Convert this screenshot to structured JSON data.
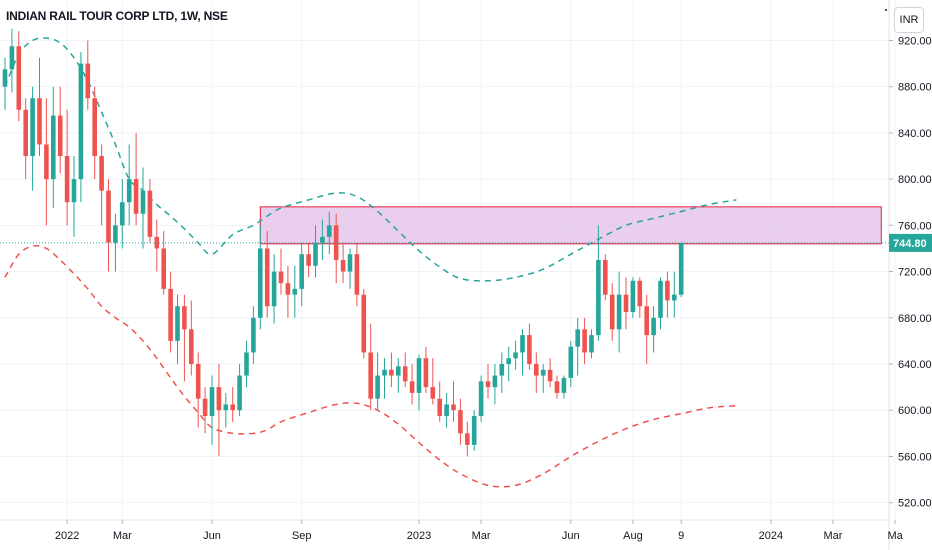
{
  "header": {
    "symbol_title": "INDIAN RAIL TOUR CORP LTD, 1W, NSE",
    "currency_label": "INR"
  },
  "colors": {
    "up": "#26a69a",
    "down": "#ef5350",
    "zone_fill": "#e1bee7",
    "zone_border": "#e91e3a",
    "upper_band": "#26a69a",
    "lower_band": "#ef5350",
    "last_price_badge": "#26a69a"
  },
  "chart_data": {
    "type": "candlestick",
    "x_axis": {
      "ticks": [
        {
          "label": "2022",
          "t": 9
        },
        {
          "label": "Mar",
          "t": 17
        },
        {
          "label": "Jun",
          "t": 30
        },
        {
          "label": "Sep",
          "t": 43
        },
        {
          "label": "2023",
          "t": 60
        },
        {
          "label": "Mar",
          "t": 69
        },
        {
          "label": "Jun",
          "t": 82
        },
        {
          "label": "Aug",
          "t": 91
        },
        {
          "label": "9",
          "t": 98
        },
        {
          "label": "2024",
          "t": 111
        },
        {
          "label": "Mar",
          "t": 120
        },
        {
          "label": "Ma",
          "t": 129
        }
      ]
    },
    "y_axis": {
      "ticks": [
        520,
        560,
        600,
        640,
        680,
        720,
        760,
        800,
        840,
        880,
        920
      ],
      "range": [
        505,
        955
      ]
    },
    "last_price": 744.8,
    "last_price_label": "744.80",
    "resistance_zone": {
      "t_start": 37,
      "t_end": 127,
      "low": 744,
      "high": 776
    },
    "upper_band": [
      [
        0,
        880
      ],
      [
        2,
        908
      ],
      [
        4,
        920
      ],
      [
        6,
        922
      ],
      [
        8,
        918
      ],
      [
        10,
        905
      ],
      [
        12,
        885
      ],
      [
        14,
        858
      ],
      [
        16,
        830
      ],
      [
        18,
        800
      ],
      [
        20,
        790
      ],
      [
        22,
        778
      ],
      [
        24,
        768
      ],
      [
        26,
        757
      ],
      [
        28,
        745
      ],
      [
        30,
        735
      ],
      [
        33,
        752
      ],
      [
        36,
        760
      ],
      [
        38,
        768
      ],
      [
        40,
        775
      ],
      [
        44,
        782
      ],
      [
        48,
        788
      ],
      [
        51,
        785
      ],
      [
        54,
        772
      ],
      [
        57,
        755
      ],
      [
        60,
        738
      ],
      [
        63,
        724
      ],
      [
        66,
        714
      ],
      [
        70,
        712
      ],
      [
        74,
        715
      ],
      [
        78,
        722
      ],
      [
        82,
        735
      ],
      [
        86,
        748
      ],
      [
        90,
        760
      ],
      [
        94,
        766
      ],
      [
        98,
        772
      ],
      [
        102,
        778
      ],
      [
        106,
        782
      ]
    ],
    "lower_band": [
      [
        0,
        715
      ],
      [
        2,
        735
      ],
      [
        4,
        742
      ],
      [
        6,
        740
      ],
      [
        8,
        730
      ],
      [
        10,
        718
      ],
      [
        12,
        705
      ],
      [
        14,
        690
      ],
      [
        16,
        680
      ],
      [
        18,
        672
      ],
      [
        20,
        660
      ],
      [
        22,
        645
      ],
      [
        24,
        628
      ],
      [
        26,
        612
      ],
      [
        28,
        598
      ],
      [
        30,
        585
      ],
      [
        33,
        580
      ],
      [
        36,
        580
      ],
      [
        38,
        583
      ],
      [
        40,
        590
      ],
      [
        44,
        598
      ],
      [
        48,
        605
      ],
      [
        51,
        606
      ],
      [
        54,
        600
      ],
      [
        57,
        588
      ],
      [
        60,
        572
      ],
      [
        63,
        557
      ],
      [
        66,
        545
      ],
      [
        70,
        535
      ],
      [
        74,
        535
      ],
      [
        78,
        545
      ],
      [
        82,
        560
      ],
      [
        86,
        573
      ],
      [
        90,
        584
      ],
      [
        94,
        592
      ],
      [
        98,
        597
      ],
      [
        102,
        602
      ],
      [
        106,
        604
      ]
    ],
    "candles": [
      [
        880,
        905,
        860,
        895
      ],
      [
        895,
        930,
        875,
        915
      ],
      [
        915,
        928,
        850,
        860
      ],
      [
        860,
        870,
        800,
        820
      ],
      [
        820,
        880,
        790,
        870
      ],
      [
        870,
        905,
        820,
        830
      ],
      [
        830,
        870,
        760,
        800
      ],
      [
        800,
        880,
        775,
        855
      ],
      [
        855,
        880,
        805,
        820
      ],
      [
        820,
        860,
        760,
        780
      ],
      [
        780,
        820,
        750,
        800
      ],
      [
        800,
        910,
        780,
        900
      ],
      [
        900,
        920,
        860,
        870
      ],
      [
        870,
        880,
        800,
        820
      ],
      [
        820,
        830,
        760,
        790
      ],
      [
        790,
        800,
        720,
        745
      ],
      [
        745,
        770,
        720,
        760
      ],
      [
        760,
        800,
        740,
        780
      ],
      [
        780,
        830,
        760,
        800
      ],
      [
        800,
        840,
        760,
        770
      ],
      [
        770,
        810,
        740,
        790
      ],
      [
        790,
        800,
        745,
        750
      ],
      [
        750,
        765,
        720,
        740
      ],
      [
        740,
        755,
        700,
        705
      ],
      [
        705,
        720,
        650,
        660
      ],
      [
        660,
        700,
        640,
        690
      ],
      [
        690,
        700,
        625,
        670
      ],
      [
        670,
        695,
        630,
        640
      ],
      [
        640,
        650,
        585,
        610
      ],
      [
        610,
        620,
        580,
        595
      ],
      [
        595,
        630,
        570,
        620
      ],
      [
        620,
        640,
        560,
        600
      ],
      [
        600,
        615,
        585,
        605
      ],
      [
        605,
        620,
        590,
        600
      ],
      [
        600,
        640,
        595,
        630
      ],
      [
        630,
        660,
        620,
        650
      ],
      [
        650,
        690,
        640,
        680
      ],
      [
        680,
        760,
        670,
        740
      ],
      [
        740,
        755,
        680,
        690
      ],
      [
        690,
        735,
        675,
        720
      ],
      [
        720,
        740,
        700,
        710
      ],
      [
        710,
        725,
        680,
        700
      ],
      [
        700,
        725,
        680,
        705
      ],
      [
        705,
        745,
        690,
        735
      ],
      [
        735,
        745,
        715,
        725
      ],
      [
        725,
        760,
        715,
        745
      ],
      [
        745,
        765,
        730,
        750
      ],
      [
        750,
        772,
        735,
        760
      ],
      [
        760,
        770,
        710,
        730
      ],
      [
        730,
        745,
        710,
        720
      ],
      [
        720,
        740,
        705,
        735
      ],
      [
        735,
        745,
        690,
        700
      ],
      [
        700,
        705,
        645,
        650
      ],
      [
        650,
        675,
        600,
        610
      ],
      [
        610,
        650,
        600,
        630
      ],
      [
        630,
        645,
        610,
        635
      ],
      [
        635,
        650,
        620,
        630
      ],
      [
        630,
        645,
        615,
        638
      ],
      [
        638,
        650,
        620,
        625
      ],
      [
        625,
        640,
        605,
        615
      ],
      [
        615,
        648,
        600,
        645
      ],
      [
        645,
        655,
        615,
        620
      ],
      [
        620,
        645,
        605,
        610
      ],
      [
        610,
        625,
        590,
        595
      ],
      [
        595,
        615,
        585,
        605
      ],
      [
        605,
        625,
        590,
        600
      ],
      [
        600,
        610,
        570,
        580
      ],
      [
        580,
        590,
        560,
        570
      ],
      [
        570,
        600,
        565,
        595
      ],
      [
        595,
        630,
        590,
        625
      ],
      [
        625,
        640,
        610,
        620
      ],
      [
        620,
        640,
        605,
        630
      ],
      [
        630,
        650,
        615,
        640
      ],
      [
        640,
        655,
        625,
        645
      ],
      [
        645,
        660,
        635,
        650
      ],
      [
        650,
        670,
        630,
        665
      ],
      [
        665,
        675,
        635,
        640
      ],
      [
        640,
        650,
        615,
        630
      ],
      [
        630,
        640,
        615,
        635
      ],
      [
        635,
        645,
        620,
        625
      ],
      [
        625,
        630,
        610,
        615
      ],
      [
        615,
        630,
        610,
        628
      ],
      [
        628,
        660,
        620,
        655
      ],
      [
        655,
        680,
        630,
        670
      ],
      [
        670,
        680,
        640,
        650
      ],
      [
        650,
        670,
        645,
        665
      ],
      [
        665,
        760,
        660,
        730
      ],
      [
        730,
        735,
        695,
        700
      ],
      [
        700,
        710,
        660,
        670
      ],
      [
        670,
        720,
        650,
        700
      ],
      [
        700,
        715,
        670,
        685
      ],
      [
        685,
        715,
        680,
        712
      ],
      [
        712,
        715,
        680,
        690
      ],
      [
        690,
        700,
        640,
        665
      ],
      [
        665,
        690,
        650,
        680
      ],
      [
        680,
        715,
        670,
        712
      ],
      [
        712,
        720,
        680,
        695
      ],
      [
        695,
        720,
        680,
        700
      ],
      [
        700,
        745,
        698,
        744.8
      ]
    ]
  }
}
